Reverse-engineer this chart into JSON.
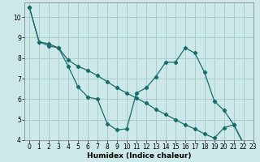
{
  "xlabel": "Humidex (Indice chaleur)",
  "bg_color": "#cce8e8",
  "grid_color": "#aacccc",
  "line_color": "#1a6b6b",
  "line1_y": [
    10.5,
    8.8,
    8.7,
    8.5,
    7.6,
    6.6,
    6.1,
    6.0,
    4.8,
    4.5,
    4.55,
    6.3,
    6.55,
    7.1,
    7.8,
    7.8,
    8.5,
    8.25,
    7.3,
    5.9,
    5.45,
    4.75,
    3.8,
    3.85
  ],
  "line2_y": [
    10.5,
    8.8,
    8.6,
    8.5,
    7.9,
    7.6,
    7.4,
    7.15,
    6.85,
    6.55,
    6.3,
    6.05,
    5.8,
    5.5,
    5.25,
    5.0,
    4.75,
    4.55,
    4.3,
    4.1,
    4.6,
    4.75,
    3.85,
    3.85
  ],
  "ylim": [
    4,
    10.7
  ],
  "xlim": [
    -0.5,
    23
  ],
  "yticks": [
    4,
    5,
    6,
    7,
    8,
    9,
    10
  ],
  "xticks": [
    0,
    1,
    2,
    3,
    4,
    5,
    6,
    7,
    8,
    9,
    10,
    11,
    12,
    13,
    14,
    15,
    16,
    17,
    18,
    19,
    20,
    21,
    22,
    23
  ],
  "tick_fontsize": 5.5,
  "xlabel_fontsize": 6.5
}
